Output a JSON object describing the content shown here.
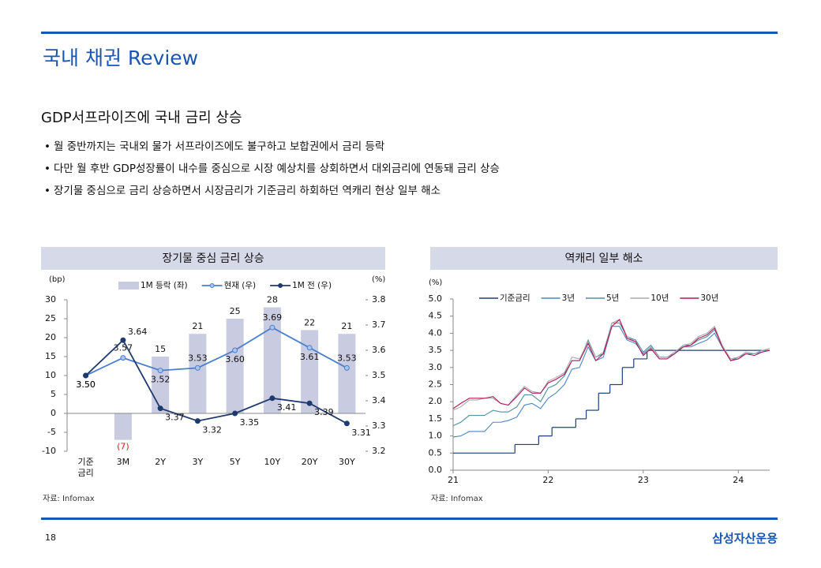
{
  "header": {
    "title": "국내 채권 Review"
  },
  "subtitle": "GDP서프라이즈에 국내 금리 상승",
  "bullets": [
    "월 중반까지는 국내외 물가 서프라이즈에도 불구하고 보합권에서 금리 등락",
    "다만 월 후반 GDP성장률이 내수를 중심으로 시장 예상치를 상회하면서 대외금리에 연동돼 금리 상승",
    "장기물 중심으로 금리 상승하면서 시장금리가 기준금리 하회하던 역캐리 현상 일부 해소"
  ],
  "chart_data": [
    {
      "type": "combo",
      "title": "장기물 중심 금리 상승",
      "y_label": "(bp)",
      "y2_label": "(%)",
      "categories": [
        "기준\n금리",
        "3M",
        "2Y",
        "3Y",
        "5Y",
        "10Y",
        "20Y",
        "30Y"
      ],
      "series": [
        {
          "name": "1M 등락 (좌)",
          "type": "bar",
          "color": "#c9cbe0",
          "negative_label_color": "#d02020",
          "values": [
            null,
            -7,
            15,
            21,
            25,
            28,
            22,
            21
          ],
          "value_labels": [
            null,
            "(7)",
            "15",
            "21",
            "25",
            "28",
            "22",
            "21"
          ]
        },
        {
          "name": "현재 (우)",
          "type": "line",
          "axis": "y2",
          "color": "#4a7fcf",
          "marker_fill": "#a9c4ee",
          "values": [
            3.5,
            3.57,
            3.52,
            3.53,
            3.6,
            3.69,
            3.61,
            3.53
          ],
          "value_labels": [
            "3.50",
            "3.57",
            "3.52",
            "3.53",
            "3.60",
            "3.69",
            "3.61",
            "3.53"
          ]
        },
        {
          "name": "1M 전 (우)",
          "type": "line",
          "axis": "y2",
          "color": "#1f3a6e",
          "marker_fill": "#1f3a6e",
          "values": [
            3.5,
            3.64,
            3.37,
            3.32,
            3.35,
            3.41,
            3.39,
            3.31
          ],
          "value_labels": [
            "3.50",
            "3.64",
            "3.37",
            "3.32",
            "3.35",
            "3.41",
            "3.39",
            "3.31"
          ]
        }
      ],
      "ylim": [
        -10,
        30
      ],
      "yticks": [
        -10,
        -5,
        0,
        5,
        10,
        15,
        20,
        25,
        30
      ],
      "y2lim": [
        3.2,
        3.8
      ],
      "y2ticks": [
        3.2,
        3.3,
        3.4,
        3.5,
        3.6,
        3.7,
        3.8
      ]
    },
    {
      "type": "line",
      "title": "역캐리 일부 해소",
      "y_label": "(%)",
      "x": [
        21,
        21.08,
        21.17,
        21.25,
        21.33,
        21.42,
        21.5,
        21.58,
        21.67,
        21.75,
        21.83,
        21.92,
        22,
        22.08,
        22.17,
        22.25,
        22.33,
        22.42,
        22.5,
        22.58,
        22.67,
        22.75,
        22.83,
        22.92,
        23,
        23.08,
        23.17,
        23.25,
        23.33,
        23.42,
        23.5,
        23.58,
        23.67,
        23.75,
        23.83,
        23.92,
        24,
        24.08,
        24.17,
        24.25,
        24.33
      ],
      "series": [
        {
          "name": "기준금리",
          "color": "#1f3f7a",
          "step": true,
          "x": [
            21,
            21.65,
            21.9,
            22.04,
            22.29,
            22.4,
            22.53,
            22.65,
            22.78,
            22.9,
            23.04
          ],
          "values": [
            0.5,
            0.75,
            1.0,
            1.25,
            1.5,
            1.75,
            2.25,
            2.5,
            3.0,
            3.25,
            3.5
          ]
        },
        {
          "name": "3년",
          "color": "#4a86c8",
          "values": [
            0.97,
            1.0,
            1.13,
            1.13,
            1.13,
            1.4,
            1.4,
            1.45,
            1.55,
            1.9,
            1.95,
            1.8,
            2.1,
            2.25,
            2.5,
            2.95,
            3.0,
            3.6,
            3.2,
            3.3,
            4.2,
            4.2,
            3.8,
            3.7,
            3.4,
            3.6,
            3.3,
            3.3,
            3.4,
            3.6,
            3.6,
            3.7,
            3.8,
            4.0,
            3.6,
            3.2,
            3.3,
            3.4,
            3.4,
            3.45,
            3.5
          ]
        },
        {
          "name": "5년",
          "color": "#4f8fa0",
          "values": [
            1.3,
            1.4,
            1.6,
            1.6,
            1.6,
            1.75,
            1.7,
            1.7,
            1.85,
            2.2,
            2.2,
            2.0,
            2.4,
            2.5,
            2.75,
            3.2,
            3.2,
            3.8,
            3.3,
            3.4,
            4.3,
            4.3,
            3.9,
            3.8,
            3.45,
            3.65,
            3.3,
            3.3,
            3.4,
            3.65,
            3.65,
            3.8,
            3.9,
            4.1,
            3.65,
            3.2,
            3.3,
            3.4,
            3.4,
            3.5,
            3.5
          ]
        },
        {
          "name": "10년",
          "color": "#aaaaaa",
          "values": [
            1.75,
            1.85,
            2.05,
            2.05,
            2.1,
            2.1,
            1.95,
            1.9,
            2.2,
            2.45,
            2.3,
            2.25,
            2.6,
            2.7,
            2.85,
            3.3,
            3.25,
            3.75,
            3.3,
            3.45,
            4.3,
            4.4,
            3.9,
            3.75,
            3.35,
            3.6,
            3.3,
            3.3,
            3.45,
            3.65,
            3.7,
            3.9,
            4.0,
            4.2,
            3.65,
            3.25,
            3.3,
            3.45,
            3.4,
            3.5,
            3.55
          ]
        },
        {
          "name": "30년",
          "color": "#b0185a",
          "values": [
            1.8,
            1.95,
            2.1,
            2.1,
            2.1,
            2.15,
            1.95,
            1.9,
            2.15,
            2.4,
            2.25,
            2.25,
            2.55,
            2.65,
            2.8,
            3.2,
            3.2,
            3.7,
            3.2,
            3.4,
            4.2,
            4.4,
            3.85,
            3.75,
            3.35,
            3.55,
            3.25,
            3.25,
            3.4,
            3.6,
            3.65,
            3.85,
            3.95,
            4.15,
            3.6,
            3.2,
            3.25,
            3.4,
            3.35,
            3.45,
            3.5
          ]
        }
      ],
      "xlim": [
        21,
        24.33
      ],
      "xticks": [
        21,
        22,
        23,
        24
      ],
      "ylim": [
        0,
        5
      ],
      "yticks": [
        {
          "value": 0,
          "label": "0.0"
        },
        {
          "value": 0.5,
          "label": "0.5"
        },
        {
          "value": 1,
          "label": "1.0"
        },
        {
          "value": 1.5,
          "label": "1.5"
        },
        {
          "value": 2,
          "label": "2.0"
        },
        {
          "value": 2.5,
          "label": "2.5"
        },
        {
          "value": 3,
          "label": "3.0"
        },
        {
          "value": 3.5,
          "label": "3.5"
        },
        {
          "value": 4,
          "label": "4.0"
        },
        {
          "value": 4.5,
          "label": "4.5"
        },
        {
          "value": 5,
          "label": "5.0"
        }
      ]
    }
  ],
  "sources": [
    "자료: Infomax",
    "자료: Infomax"
  ],
  "page_number": "18",
  "logo": "삼성자산운용"
}
